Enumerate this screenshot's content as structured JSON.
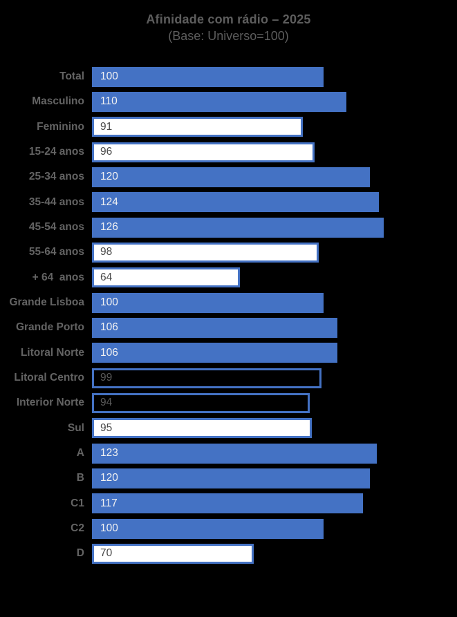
{
  "colors": {
    "background": "#000000",
    "bar_blue": "#4472C4",
    "bar_outline_blue": "#4472C4",
    "title_gray": "#5d5d5d",
    "label_gray": "#636363",
    "value_on_blue": "#f2f2f2",
    "value_on_white": "#474747",
    "value_on_dark": "#5a5a5a"
  },
  "chart_data": {
    "type": "bar",
    "orientation": "horizontal",
    "title": "Afinidade com rádio – 2025",
    "subtitle": "(Base: Universo=100)",
    "grid": false,
    "legend": "none",
    "value_axis_visible": false,
    "xlim": [
      0,
      126
    ],
    "categories": [
      "Total",
      "Masculino",
      "Feminino",
      "15-24 anos",
      "25-34 anos",
      "35-44 anos",
      "45-54 anos",
      "55-64 anos",
      "+ 64  anos",
      "Grande Lisboa",
      "Grande Porto",
      "Litoral Norte",
      "Litoral Centro",
      "Interior Norte",
      "Sul",
      "A",
      "B",
      "C1",
      "C2",
      "D"
    ],
    "values": [
      100,
      110,
      91,
      96,
      120,
      124,
      126,
      98,
      64,
      100,
      106,
      106,
      99,
      94,
      95,
      123,
      120,
      117,
      100,
      70
    ],
    "rows": [
      {
        "label": "Total",
        "value": 100,
        "style": "blue"
      },
      {
        "label": "Masculino",
        "value": 110,
        "style": "blue"
      },
      {
        "label": "Feminino",
        "value": 91,
        "style": "white"
      },
      {
        "label": "15-24 anos",
        "value": 96,
        "style": "white"
      },
      {
        "label": "25-34 anos",
        "value": 120,
        "style": "blue"
      },
      {
        "label": "35-44 anos",
        "value": 124,
        "style": "blue"
      },
      {
        "label": "45-54 anos",
        "value": 126,
        "style": "blue"
      },
      {
        "label": "55-64 anos",
        "value": 98,
        "style": "white"
      },
      {
        "label": "+ 64  anos",
        "value": 64,
        "style": "white"
      },
      {
        "label": "Grande Lisboa",
        "value": 100,
        "style": "blue"
      },
      {
        "label": "Grande Porto",
        "value": 106,
        "style": "blue"
      },
      {
        "label": "Litoral Norte",
        "value": 106,
        "style": "blue"
      },
      {
        "label": "Litoral Centro",
        "value": 99,
        "style": "dark"
      },
      {
        "label": "Interior Norte",
        "value": 94,
        "style": "dark"
      },
      {
        "label": "Sul",
        "value": 95,
        "style": "white"
      },
      {
        "label": "A",
        "value": 123,
        "style": "blue"
      },
      {
        "label": "B",
        "value": 120,
        "style": "blue"
      },
      {
        "label": "C1",
        "value": 117,
        "style": "blue"
      },
      {
        "label": "C2",
        "value": 100,
        "style": "blue"
      },
      {
        "label": "D",
        "value": 70,
        "style": "white"
      }
    ]
  }
}
